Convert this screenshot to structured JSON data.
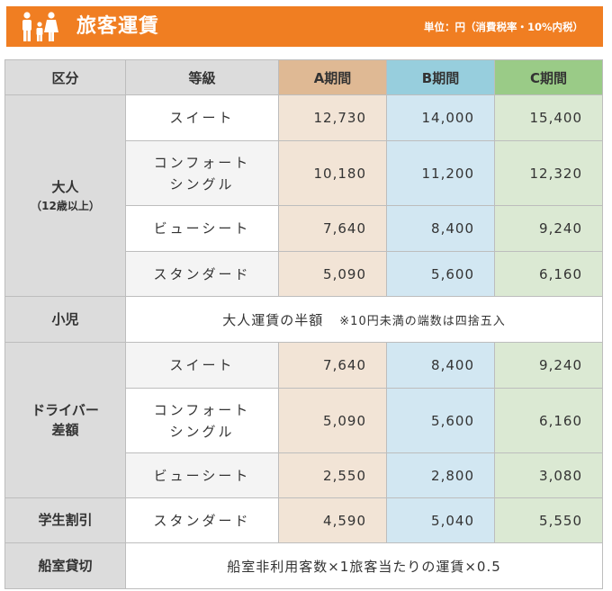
{
  "header": {
    "title": "旅客運賃",
    "unit": "単位：円（消費税率・10%内税）"
  },
  "columns": {
    "category": "区分",
    "grade": "等級",
    "a": "A期間",
    "b": "B期間",
    "c": "C期間"
  },
  "adult": {
    "label": "大人",
    "sublabel": "（12歳以上）",
    "rows": [
      {
        "grade": "スイート",
        "a": "12,730",
        "b": "14,000",
        "c": "15,400"
      },
      {
        "grade": "コンフォート",
        "grade2": "シングル",
        "a": "10,180",
        "b": "11,200",
        "c": "12,320"
      },
      {
        "grade": "ビューシート",
        "a": "7,640",
        "b": "8,400",
        "c": "9,240"
      },
      {
        "grade": "スタンダード",
        "a": "5,090",
        "b": "5,600",
        "c": "6,160"
      }
    ]
  },
  "child": {
    "label": "小児",
    "text": "大人運賃の半額",
    "note": "※10円未満の端数は四捨五入"
  },
  "driver": {
    "label": "ドライバー",
    "label2": "差額",
    "rows": [
      {
        "grade": "スイート",
        "a": "7,640",
        "b": "8,400",
        "c": "9,240"
      },
      {
        "grade": "コンフォート",
        "grade2": "シングル",
        "a": "5,090",
        "b": "5,600",
        "c": "6,160"
      },
      {
        "grade": "ビューシート",
        "a": "2,550",
        "b": "2,800",
        "c": "3,080"
      }
    ]
  },
  "student": {
    "label": "学生割引",
    "row": {
      "grade": "スタンダード",
      "a": "4,590",
      "b": "5,040",
      "c": "5,550"
    }
  },
  "charter": {
    "label": "船室貸切",
    "text": "船室非利用客数×1旅客当たりの運賃×0.5"
  }
}
